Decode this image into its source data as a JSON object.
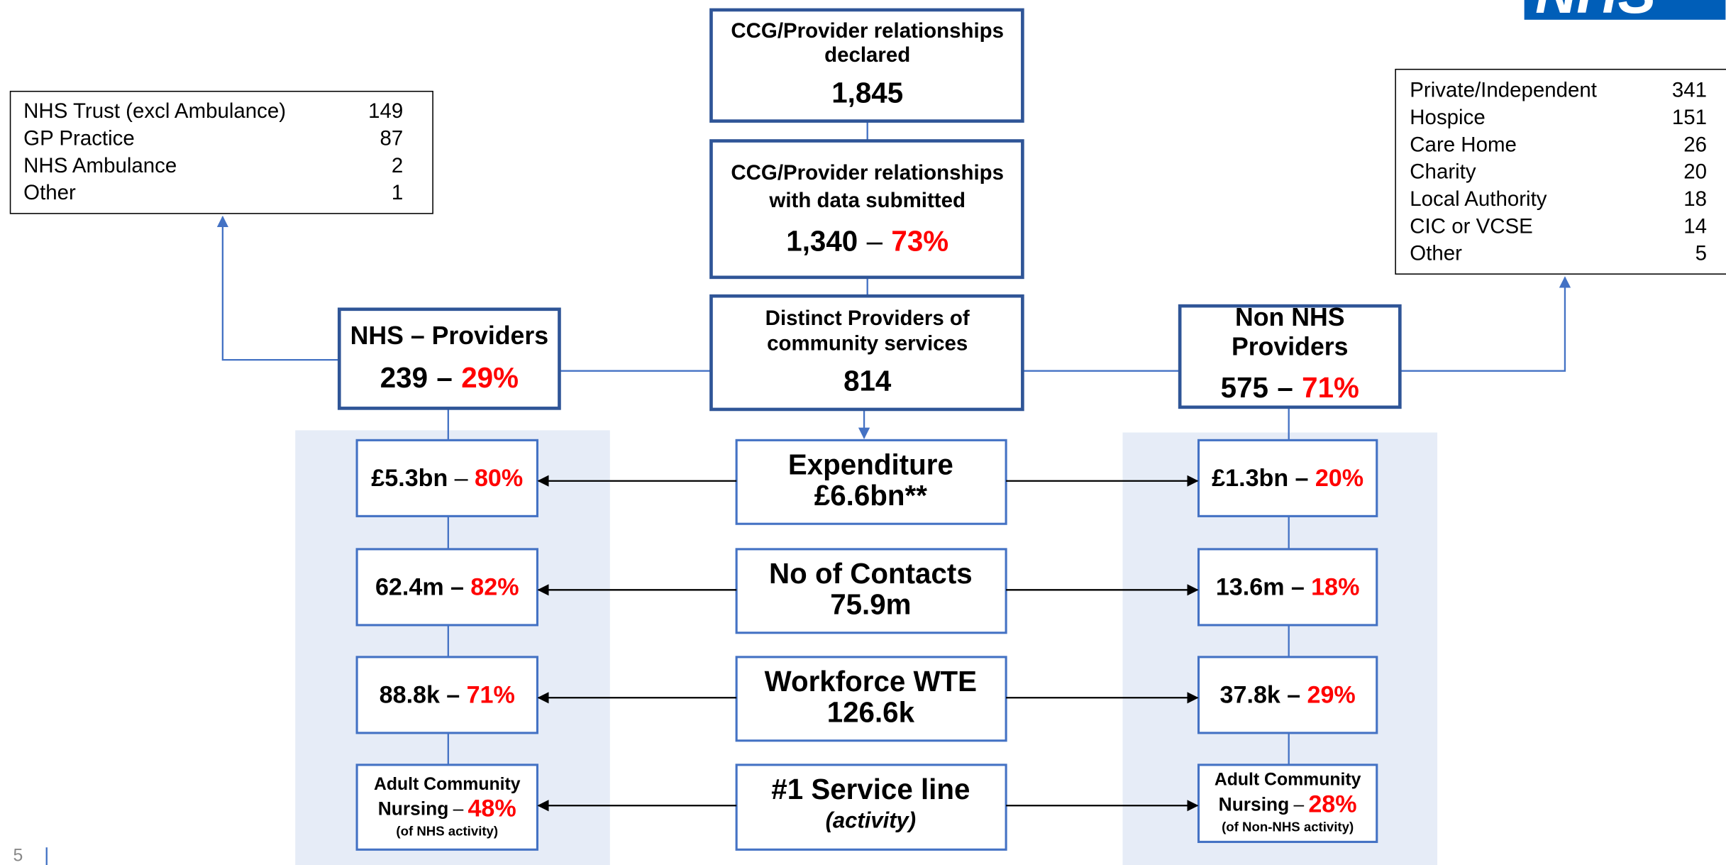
{
  "logo": "NHS",
  "page_number": "5",
  "separator": "–",
  "top": {
    "declared": {
      "title": [
        "CCG/Provider relationships",
        "declared"
      ],
      "value": "1,845"
    },
    "submitted": {
      "title": [
        "CCG/Provider relationships",
        "with data submitted"
      ],
      "value": "1,340",
      "percent": "73%"
    },
    "distinct": {
      "title": [
        "Distinct Providers of",
        "community services"
      ],
      "value": "814"
    }
  },
  "nhs_providers": {
    "title": "NHS – Providers",
    "value": "239",
    "percent": "29%"
  },
  "non_nhs_providers": {
    "title": [
      "Non NHS",
      "Providers"
    ],
    "value": "575",
    "percent": "71%"
  },
  "nhs_breakdown": [
    {
      "label": "NHS Trust (excl Ambulance)",
      "value": "149"
    },
    {
      "label": "GP Practice",
      "value": "87"
    },
    {
      "label": "NHS Ambulance",
      "value": "2"
    },
    {
      "label": "Other",
      "value": "1"
    }
  ],
  "non_nhs_breakdown": [
    {
      "label": "Private/Independent",
      "value": "341"
    },
    {
      "label": "Hospice",
      "value": "151"
    },
    {
      "label": "Care Home",
      "value": "26"
    },
    {
      "label": "Charity",
      "value": "20"
    },
    {
      "label": "Local Authority",
      "value": "18"
    },
    {
      "label": "CIC or VCSE",
      "value": "14"
    },
    {
      "label": "Other",
      "value": "5"
    }
  ],
  "metrics": [
    {
      "label": "Expenditure",
      "total": "£6.6bn**",
      "nhs": {
        "value": "£5.3bn",
        "percent": "80%"
      },
      "non_nhs": {
        "value": "£1.3bn",
        "percent": "20%"
      }
    },
    {
      "label": "No of Contacts",
      "total": "75.9m",
      "nhs": {
        "value": "62.4m",
        "percent": "82%"
      },
      "non_nhs": {
        "value": "13.6m",
        "percent": "18%"
      }
    },
    {
      "label": "Workforce WTE",
      "total": "126.6k",
      "nhs": {
        "value": "88.8k",
        "percent": "71%"
      },
      "non_nhs": {
        "value": "37.8k",
        "percent": "29%"
      }
    },
    {
      "label": "#1 Service line",
      "total": "(activity)",
      "nhs": {
        "value": [
          "Adult Community",
          "Nursing"
        ],
        "percent": "48%",
        "note": "(of NHS activity)"
      },
      "non_nhs": {
        "value": [
          "Adult Community",
          "Nursing"
        ],
        "percent": "28%",
        "note": "(of Non-NHS activity)"
      }
    }
  ]
}
